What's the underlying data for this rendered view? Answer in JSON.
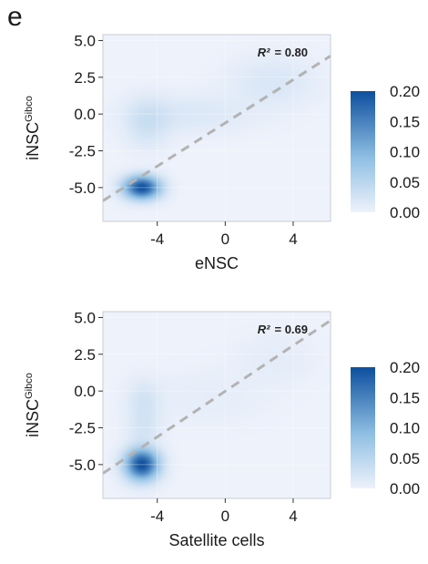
{
  "panel_label": "e",
  "chart_data": [
    {
      "type": "heatmap",
      "subtype": "2d-density-with-regression-line",
      "xlabel": "eNSC",
      "ylabel": "iNSC",
      "ylabel_superscript": "Gibco",
      "xlim": [
        -7.2,
        6.2
      ],
      "ylim": [
        -7.3,
        5.4
      ],
      "xticks": [
        -4,
        0,
        4
      ],
      "xtick_labels": [
        "-4",
        "0",
        "4"
      ],
      "yticks": [
        5.0,
        2.5,
        0.0,
        -2.5,
        -5.0
      ],
      "ytick_labels": [
        "5.0",
        "2.5",
        "0.0",
        "-2.5",
        "-5.0"
      ],
      "annotation": {
        "label": "R²",
        "value": "= 0.80"
      },
      "fit_line": {
        "x": [
          -7.2,
          6.2
        ],
        "y": [
          -5.9,
          3.95
        ]
      },
      "density_blobs": [
        {
          "x": -4.9,
          "y": -5.0,
          "sx": 0.75,
          "sy": 0.55,
          "w": 1.0
        },
        {
          "x": -4.6,
          "y": -0.6,
          "sx": 0.9,
          "sy": 1.2,
          "w": 0.14
        },
        {
          "x": -2.0,
          "y": 0.0,
          "sx": 2.5,
          "sy": 0.9,
          "w": 0.09
        },
        {
          "x": 2.8,
          "y": 2.2,
          "sx": 1.8,
          "sy": 1.2,
          "w": 0.1
        }
      ],
      "colorbar": {
        "min": 0.0,
        "max": 0.2,
        "ticks": [
          "0.20",
          "0.15",
          "0.10",
          "0.05",
          "0.00"
        ]
      },
      "grid": true,
      "colors": {
        "high": "#0d4f9e",
        "low": "#eef2fb",
        "panel": "#e9eef8",
        "line": "#b3b3b3"
      }
    },
    {
      "type": "heatmap",
      "subtype": "2d-density-with-regression-line",
      "xlabel": "Satellite cells",
      "ylabel": "iNSC",
      "ylabel_superscript": "Gibco",
      "xlim": [
        -7.2,
        6.2
      ],
      "ylim": [
        -7.3,
        5.4
      ],
      "xticks": [
        -4,
        0,
        4
      ],
      "xtick_labels": [
        "-4",
        "0",
        "4"
      ],
      "yticks": [
        5.0,
        2.5,
        0.0,
        -2.5,
        -5.0
      ],
      "ytick_labels": [
        "5.0",
        "2.5",
        "0.0",
        "-2.5",
        "-5.0"
      ],
      "annotation": {
        "label": "R²",
        "value": "= 0.69"
      },
      "fit_line": {
        "x": [
          -7.2,
          6.2
        ],
        "y": [
          -5.6,
          4.8
        ]
      },
      "density_blobs": [
        {
          "x": -4.9,
          "y": -5.0,
          "sx": 0.7,
          "sy": 0.75,
          "w": 1.0
        },
        {
          "x": -4.8,
          "y": -0.7,
          "sx": 0.7,
          "sy": 1.0,
          "w": 0.12
        },
        {
          "x": -4.8,
          "y": -2.6,
          "sx": 0.7,
          "sy": 0.8,
          "w": 0.1
        },
        {
          "x": -1.0,
          "y": -0.4,
          "sx": 2.5,
          "sy": 1.4,
          "w": 0.04
        },
        {
          "x": 3.0,
          "y": 2.2,
          "sx": 1.6,
          "sy": 1.2,
          "w": 0.05
        }
      ],
      "colorbar": {
        "min": 0.0,
        "max": 0.2,
        "ticks": [
          "0.20",
          "0.15",
          "0.10",
          "0.05",
          "0.00"
        ]
      },
      "grid": true,
      "colors": {
        "high": "#0d4f9e",
        "low": "#eef2fb",
        "panel": "#e9eef8",
        "line": "#b3b3b3"
      }
    }
  ]
}
